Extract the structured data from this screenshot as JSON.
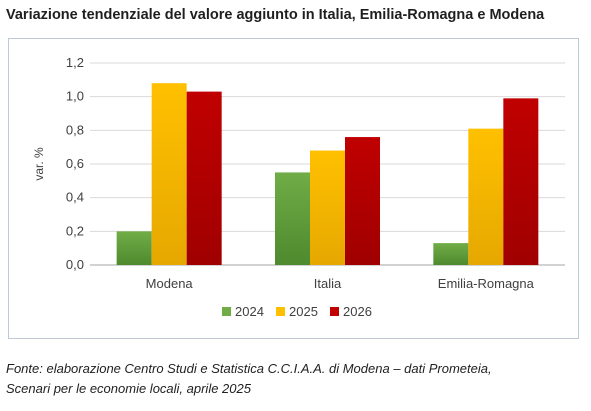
{
  "title": "Variazione tendenziale del valore aggiunto in Italia, Emilia-Romagna e Modena",
  "source_line1": "Fonte: elaborazione Centro Studi e Statistica C.C.I.A.A. di Modena – dati Prometeia,",
  "source_line2": "Scenari per le economie locali, aprile 2025",
  "chart_data": {
    "type": "bar",
    "categories": [
      "Modena",
      "Italia",
      "Emilia-Romagna"
    ],
    "series": [
      {
        "name": "2024",
        "values": [
          0.2,
          0.55,
          0.13
        ],
        "color": "#70ad47",
        "color_dark": "#4e8a2e"
      },
      {
        "name": "2025",
        "values": [
          1.08,
          0.68,
          0.81
        ],
        "color": "#ffc000",
        "color_dark": "#e6a800"
      },
      {
        "name": "2026",
        "values": [
          1.03,
          0.76,
          0.99
        ],
        "color": "#c00000",
        "color_dark": "#a00000"
      }
    ],
    "ylabel": "var. %",
    "ylim": [
      0,
      1.2
    ],
    "yticks": [
      "0,0",
      "0,2",
      "0,4",
      "0,6",
      "0,8",
      "1,0",
      "1,2"
    ],
    "ytick_values": [
      0,
      0.2,
      0.4,
      0.6,
      0.8,
      1.0,
      1.2
    ],
    "grid": true,
    "legend": "bottom"
  }
}
